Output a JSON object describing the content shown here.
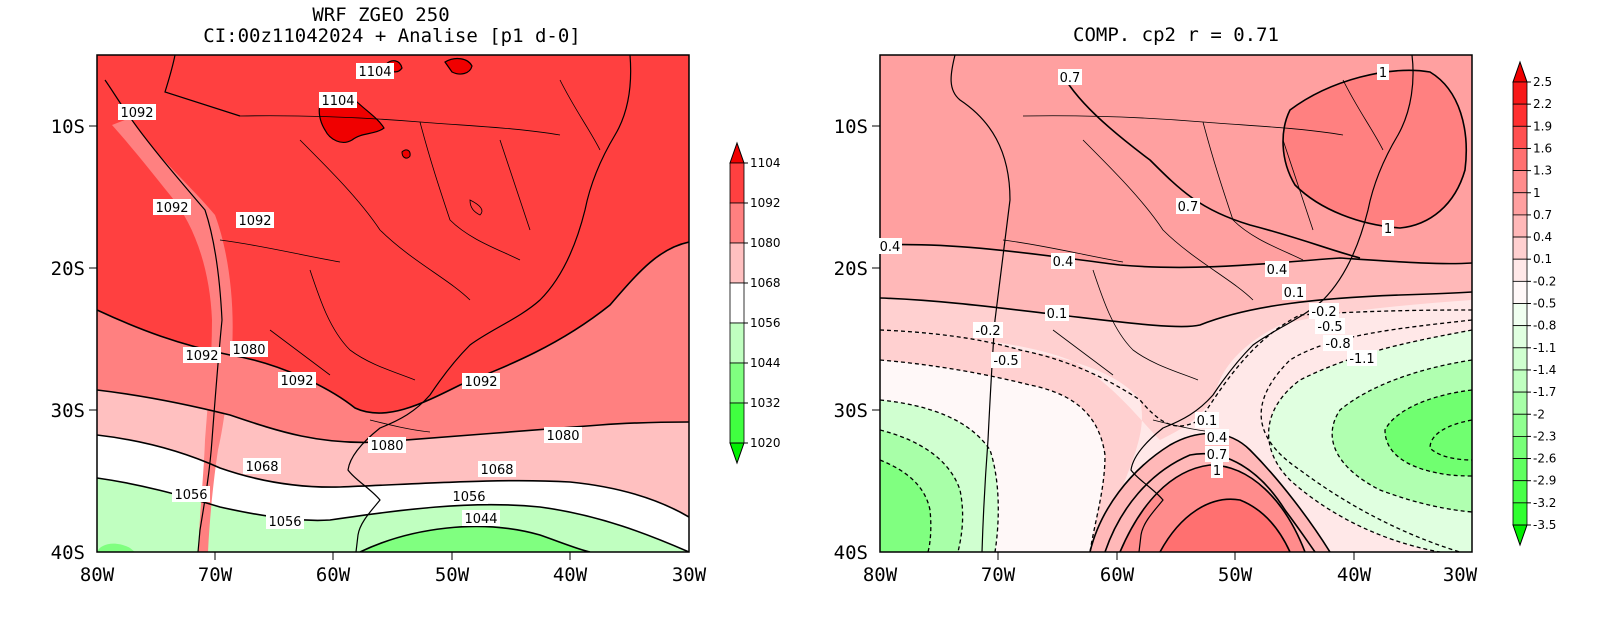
{
  "left_panel": {
    "title_line1": "WRF ZGEO 250",
    "title_line2": "CI:00z11042024 + Analise  [p1 d-0]",
    "lat_ticks": [
      "10S",
      "20S",
      "30S",
      "40S"
    ],
    "lon_ticks": [
      "80W",
      "70W",
      "60W",
      "50W",
      "40W",
      "30W"
    ],
    "contour_labels": [
      "1104",
      "1104",
      "1092",
      "1092",
      "1092",
      "1092",
      "1080",
      "1092",
      "1092",
      "1080",
      "1080",
      "1068",
      "1068",
      "1056",
      "1056",
      "1056",
      "1044"
    ],
    "colorbar": {
      "labels": [
        "1104",
        "1092",
        "1080",
        "1068",
        "1056",
        "1044",
        "1032",
        "1020"
      ],
      "colors": [
        "#f00000",
        "#ff4040",
        "#ff8080",
        "#ffc0c0",
        "#ffffff",
        "#c0ffc0",
        "#80ff80",
        "#40ff40",
        "#00f000"
      ]
    }
  },
  "right_panel": {
    "title": "COMP. cp2  r =  0.71",
    "lat_ticks": [
      "10S",
      "20S",
      "30S",
      "40S"
    ],
    "lon_ticks": [
      "80W",
      "70W",
      "60W",
      "50W",
      "40W",
      "30W"
    ],
    "contour_labels": [
      "0.7",
      "1",
      "0.7",
      "1",
      "0.4",
      "0.4",
      "0.4",
      "0.1",
      "0.1",
      "-0.2",
      "-0.2",
      "-0.5",
      "-0.5",
      "-0.8",
      "-1.1",
      "0.1",
      "0.4",
      "0.7",
      "1"
    ],
    "colorbar": {
      "labels": [
        "2.5",
        "2.2",
        "1.9",
        "1.6",
        "1.3",
        "1",
        "0.7",
        "0.4",
        "0.1",
        "-0.2",
        "-0.5",
        "-0.8",
        "-1.1",
        "-1.4",
        "-1.7",
        "-2",
        "-2.3",
        "-2.6",
        "-2.9",
        "-3.2",
        "-3.5"
      ],
      "colors": [
        "#f00000",
        "#f81818",
        "#ff3030",
        "#ff5050",
        "#ff7070",
        "#ff8c8c",
        "#ffa0a0",
        "#ffb8b8",
        "#ffd0d0",
        "#ffe8e8",
        "#fff8f8",
        "#f0fff0",
        "#e0ffe0",
        "#d0ffd0",
        "#c0ffc0",
        "#a8ffa8",
        "#90ff90",
        "#78ff78",
        "#60ff60",
        "#48ff48",
        "#30ff30",
        "#00f000"
      ]
    }
  },
  "colors": {
    "red_dark": "#f00000",
    "red": "#ff4040",
    "red_mid": "#ff8080",
    "red_light": "#ffc0c0",
    "green_light": "#c0ffc0",
    "green": "#80ff80",
    "green_dark": "#40ff40"
  }
}
